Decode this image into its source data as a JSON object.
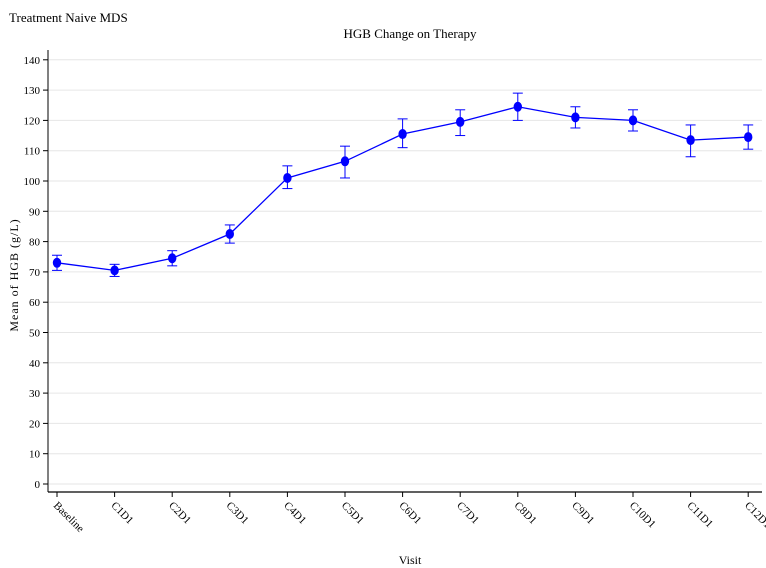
{
  "header": {
    "study_label": "Treatment Naive MDS"
  },
  "chart_data": {
    "type": "line",
    "title": "HGB Change on Therapy",
    "xlabel": "Visit",
    "ylabel": "Mean of HGB (g/L)",
    "ylim": [
      0,
      140
    ],
    "yticks": [
      0,
      10,
      20,
      30,
      40,
      50,
      60,
      70,
      80,
      90,
      100,
      110,
      120,
      130,
      140
    ],
    "grid": true,
    "categories": [
      "Baseline",
      "C1D1",
      "C2D1",
      "C3D1",
      "C4D1",
      "C5D1",
      "C6D1",
      "C7D1",
      "C8D1",
      "C9D1",
      "C10D1",
      "C11D1",
      "C12D1"
    ],
    "series": [
      {
        "values": [
          73,
          70.5,
          74.5,
          82.5,
          101,
          106.5,
          115.5,
          119.5,
          124.5,
          121,
          120,
          113.5,
          114.5
        ],
        "upper": [
          75.5,
          72.5,
          77,
          85.5,
          105,
          111.5,
          120.5,
          123.5,
          129,
          124.5,
          123.5,
          118.5,
          118.5
        ],
        "lower": [
          70.5,
          68.5,
          72,
          79.5,
          97.5,
          101,
          111,
          115,
          120,
          117.5,
          116.5,
          108,
          110.5
        ],
        "color": "#0000ff"
      }
    ]
  }
}
